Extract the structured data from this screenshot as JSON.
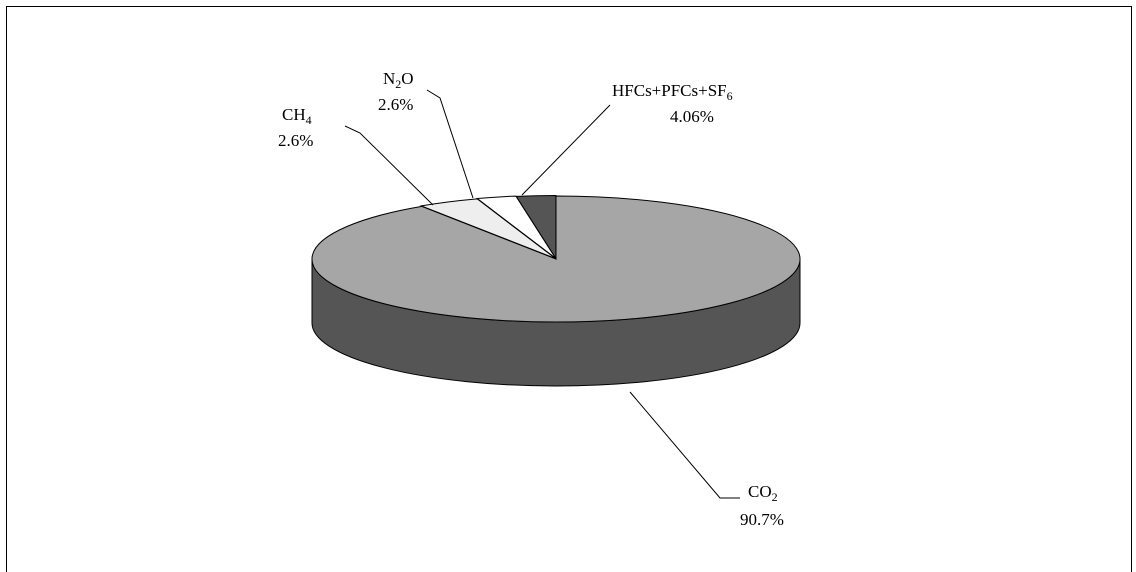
{
  "chart_data": {
    "type": "pie",
    "title": "",
    "style": "3d-exploded-tilt",
    "slices": [
      {
        "base": "CO",
        "sub": "2",
        "suffix": "",
        "label": "CO2",
        "value": 90.7,
        "value_label": "90.7%",
        "color": "#a6a6a6",
        "side_color": "#555555"
      },
      {
        "base": "CH",
        "sub": "4",
        "suffix": "",
        "label": "CH4",
        "value": 2.6,
        "value_label": "2.6%",
        "color": "#555555",
        "side_color": "#333333"
      },
      {
        "base": "N",
        "sub": "2",
        "suffix": "O",
        "label": "N2O",
        "value": 2.6,
        "value_label": "2.6%",
        "color": "#ffffff",
        "side_color": "#dddddd"
      },
      {
        "base": "HFCs+PFCs+SF",
        "sub": "6",
        "suffix": "",
        "label": "HFCs+PFCs+SF6",
        "value": 4.06,
        "value_label": "4.06%",
        "color": "#eeeeee",
        "side_color": "#cccccc"
      }
    ]
  }
}
